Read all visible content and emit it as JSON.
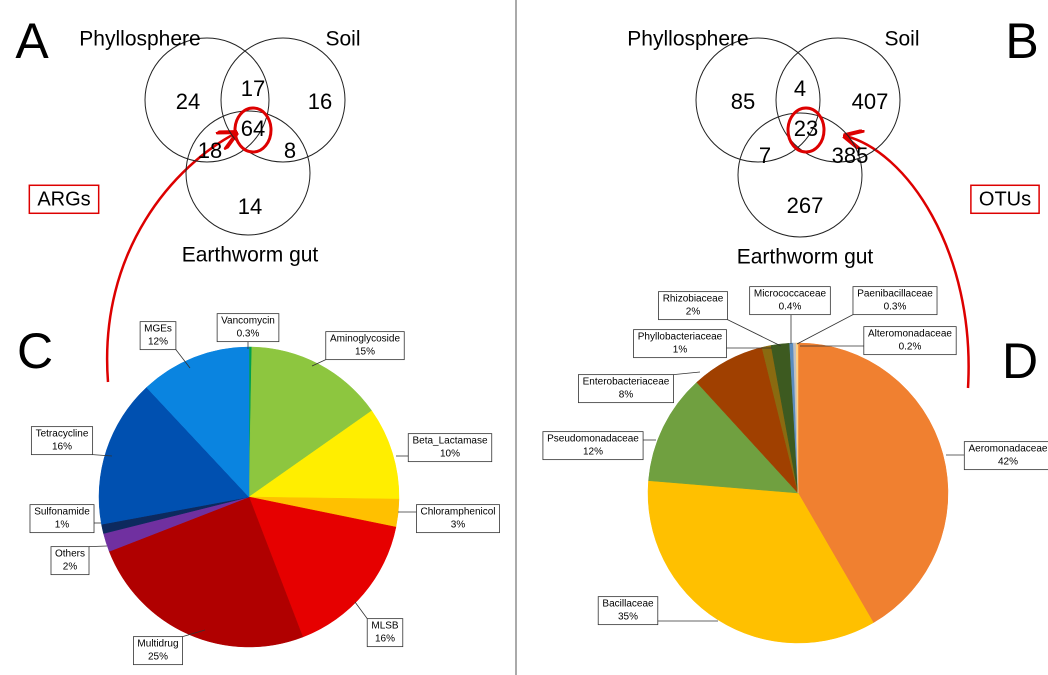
{
  "chart_data": [
    {
      "type": "venn",
      "panel": "A",
      "note": "ARGs",
      "sets": [
        "Phyllosphere",
        "Soil",
        "Earthworm gut"
      ],
      "values": [
        24,
        17,
        16,
        18,
        64,
        8,
        14
      ]
    },
    {
      "type": "venn",
      "panel": "B",
      "note": "OTUs",
      "sets": [
        "Phyllosphere",
        "Soil",
        "Earthworm gut"
      ],
      "values": [
        85,
        4,
        407,
        7,
        23,
        385,
        267
      ]
    },
    {
      "type": "pie",
      "panel": "C",
      "categories": [
        "Vancomycin",
        "Aminoglycoside",
        "Beta_Lactamase",
        "Chloramphenicol",
        "MLSB",
        "Multidrug",
        "Others",
        "Sulfonamide",
        "Tetracycline",
        "MGEs"
      ],
      "values": [
        0.3,
        15,
        10,
        3,
        16,
        25,
        2,
        1,
        16,
        12
      ],
      "value_labels": [
        "0.3%",
        "15%",
        "10%",
        "3%",
        "16%",
        "25%",
        "2%",
        "1%",
        "16%",
        "12%"
      ],
      "colors": [
        "#00a050",
        "#8dc63f",
        "#ffee00",
        "#ffc000",
        "#e60000",
        "#b00000",
        "#7030a0",
        "#0d2a5e",
        "#0050b0",
        "#0a84e0"
      ]
    },
    {
      "type": "pie",
      "panel": "D",
      "categories": [
        "Aeromonadaceae",
        "Bacillaceae",
        "Pseudomonadaceae",
        "Enterobacteriaceae",
        "Phyllobacteriaceae",
        "Rhizobiaceae",
        "Micrococcaceae",
        "Paenibacillaceae",
        "Alteromonadaceae"
      ],
      "values": [
        42,
        35,
        12,
        8,
        1,
        2,
        0.4,
        0.3,
        0.2
      ],
      "value_labels": [
        "42%",
        "35%",
        "12%",
        "8%",
        "1%",
        "2%",
        "0.4%",
        "0.3%",
        "0.2%"
      ],
      "colors": [
        "#f08030",
        "#ffc000",
        "#70a040",
        "#a04000",
        "#8a6a10",
        "#3d5a20",
        "#5a8cc0",
        "#c0c0c0",
        "#ffd080"
      ]
    }
  ]
}
